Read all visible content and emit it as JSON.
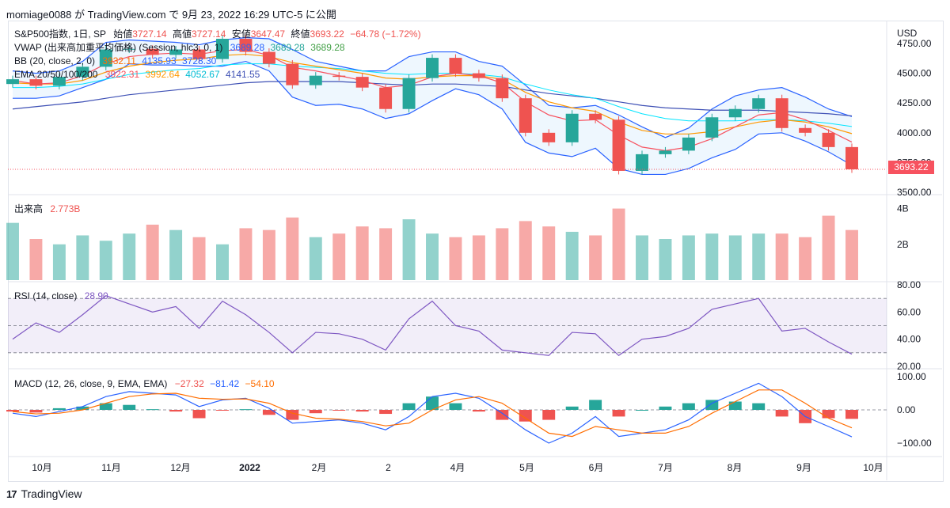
{
  "header": {
    "title": "momiage0088 が TradingView.com で 9月 23, 2022 16:29 UTC-5 に公開"
  },
  "legend": {
    "symbol": "S&P500指数, 1日, SP",
    "open_label": "始値",
    "open": "3727.14",
    "high_label": "高値",
    "high": "3727.14",
    "low_label": "安値",
    "low": "3647.47",
    "close_label": "終値",
    "close": "3693.22",
    "change": "−64.78 (−1.72%)",
    "vwap_label": "VWAP (出来高加重平均価格) (Session, hlc3, 0, 1)",
    "vwap_values": [
      "3689.28",
      "3689.28",
      "3689.28"
    ],
    "bb_label": "BB (20, close, 2, 0)",
    "bb_values": [
      "3932.11",
      "4135.93",
      "3728.30"
    ],
    "ema_label": "EMA 20/50/100/200",
    "ema_values": [
      "3922.31",
      "3992.64",
      "4052.67",
      "4141.55"
    ],
    "volume_label": "出来高",
    "volume_value": "2.773B",
    "rsi_label": "RSI (14, close)",
    "rsi_value": "28.90",
    "macd_label": "MACD (12, 26, close, 9, EMA, EMA)",
    "macd_values": [
      "−27.32",
      "−81.42",
      "−54.10"
    ]
  },
  "price_axis": {
    "currency": "USD",
    "ticks": [
      "4750.00",
      "4500.00",
      "4250.00",
      "4000.00",
      "3750.00",
      "3500.00"
    ],
    "last_price": "3693.22"
  },
  "volume_axis": {
    "ticks": [
      "4B",
      "2B"
    ]
  },
  "rsi_axis": {
    "ticks": [
      "80.00",
      "60.00",
      "40.00",
      "20.00"
    ]
  },
  "macd_axis": {
    "ticks": [
      "100.00",
      "0.00",
      "−100.00"
    ]
  },
  "time_axis": {
    "labels": [
      "10月",
      "11月",
      "12月",
      "2022",
      "2月",
      "2",
      "4月",
      "5月",
      "6月",
      "7月",
      "8月",
      "9月",
      "10月"
    ]
  },
  "footer": {
    "brand": "TradingView",
    "logo_glyph": "17"
  },
  "colors": {
    "up": "#26a69a",
    "down": "#ef5350",
    "bb": "#2962ff",
    "ema20": "#f7525f",
    "ema50": "#ff9800",
    "ema100": "#00e5ff",
    "ema200": "#3f51b5",
    "rsi": "#7e57c2",
    "macd": "#2962ff",
    "signal": "#ff6d00"
  },
  "chart_data": {
    "type": "line",
    "title": "S&P500指数, 1日, SP",
    "price_range": [
      3500,
      4850
    ],
    "x": [
      "2021-09-28",
      "2021-10-08",
      "2021-10-18",
      "2021-10-28",
      "2021-11-08",
      "2021-11-18",
      "2021-11-29",
      "2021-12-08",
      "2021-12-17",
      "2021-12-29",
      "2022-01-07",
      "2022-01-18",
      "2022-01-27",
      "2022-02-07",
      "2022-02-16",
      "2022-02-28",
      "2022-03-09",
      "2022-03-18",
      "2022-03-29",
      "2022-04-07",
      "2022-04-19",
      "2022-04-28",
      "2022-05-09",
      "2022-05-18",
      "2022-05-27",
      "2022-06-08",
      "2022-06-17",
      "2022-06-29",
      "2022-07-11",
      "2022-07-20",
      "2022-07-29",
      "2022-08-09",
      "2022-08-18",
      "2022-08-29",
      "2022-09-08",
      "2022-09-16",
      "2022-09-23"
    ],
    "close": [
      4450,
      4395,
      4470,
      4555,
      4700,
      4705,
      4655,
      4700,
      4620,
      4790,
      4680,
      4580,
      4400,
      4480,
      4470,
      4380,
      4200,
      4460,
      4630,
      4500,
      4460,
      4290,
      4000,
      3920,
      4160,
      4110,
      3680,
      3820,
      3850,
      3960,
      4130,
      4200,
      4290,
      4040,
      4000,
      3880,
      3693
    ],
    "series": [
      {
        "name": "BB upper",
        "values": [
          4520,
          4500,
          4520,
          4600,
          4760,
          4780,
          4770,
          4760,
          4740,
          4780,
          4800,
          4790,
          4700,
          4600,
          4560,
          4520,
          4520,
          4640,
          4680,
          4680,
          4600,
          4560,
          4400,
          4230,
          4210,
          4230,
          4150,
          4050,
          3960,
          4040,
          4200,
          4310,
          4360,
          4380,
          4300,
          4200,
          4136
        ]
      },
      {
        "name": "BB lower",
        "values": [
          4290,
          4290,
          4310,
          4380,
          4450,
          4580,
          4570,
          4570,
          4560,
          4560,
          4600,
          4520,
          4300,
          4230,
          4240,
          4200,
          4120,
          4160,
          4270,
          4370,
          4320,
          4200,
          3920,
          3830,
          3800,
          3870,
          3700,
          3650,
          3650,
          3700,
          3790,
          3860,
          3990,
          4000,
          3930,
          3840,
          3728
        ]
      },
      {
        "name": "EMA 20",
        "values": [
          4440,
          4410,
          4420,
          4480,
          4580,
          4640,
          4660,
          4670,
          4660,
          4690,
          4700,
          4650,
          4550,
          4520,
          4480,
          4440,
          4380,
          4400,
          4470,
          4500,
          4480,
          4420,
          4260,
          4150,
          4100,
          4110,
          3980,
          3880,
          3850,
          3880,
          3950,
          4050,
          4150,
          4170,
          4110,
          4020,
          3922
        ]
      },
      {
        "name": "EMA 50",
        "values": [
          4420,
          4410,
          4410,
          4440,
          4510,
          4560,
          4590,
          4610,
          4620,
          4650,
          4660,
          4640,
          4590,
          4560,
          4530,
          4500,
          4460,
          4450,
          4470,
          4480,
          4480,
          4450,
          4340,
          4260,
          4210,
          4180,
          4090,
          4020,
          3990,
          3990,
          4010,
          4050,
          4090,
          4110,
          4090,
          4050,
          3993
        ]
      },
      {
        "name": "EMA 100",
        "values": [
          4380,
          4380,
          4390,
          4410,
          4450,
          4490,
          4510,
          4530,
          4540,
          4570,
          4580,
          4580,
          4560,
          4550,
          4540,
          4520,
          4500,
          4490,
          4500,
          4500,
          4490,
          4470,
          4410,
          4360,
          4320,
          4290,
          4220,
          4160,
          4120,
          4100,
          4100,
          4100,
          4110,
          4110,
          4100,
          4080,
          4053
        ]
      },
      {
        "name": "EMA 200",
        "values": [
          4200,
          4220,
          4240,
          4260,
          4290,
          4320,
          4340,
          4360,
          4380,
          4400,
          4420,
          4430,
          4430,
          4430,
          4430,
          4420,
          4410,
          4400,
          4410,
          4410,
          4400,
          4390,
          4360,
          4330,
          4310,
          4290,
          4260,
          4230,
          4210,
          4200,
          4190,
          4190,
          4190,
          4180,
          4170,
          4160,
          4142
        ]
      },
      {
        "name": "RSI",
        "values": [
          40,
          52,
          45,
          58,
          72,
          66,
          60,
          64,
          48,
          68,
          58,
          45,
          30,
          45,
          44,
          40,
          32,
          55,
          68,
          50,
          46,
          32,
          30,
          28,
          45,
          44,
          28,
          40,
          42,
          48,
          62,
          66,
          70,
          46,
          48,
          38,
          29
        ]
      },
      {
        "name": "MACD",
        "values": [
          -10,
          -20,
          -5,
          10,
          40,
          55,
          50,
          45,
          10,
          30,
          35,
          5,
          -40,
          -35,
          -30,
          -40,
          -60,
          -20,
          40,
          50,
          35,
          -10,
          -60,
          -100,
          -70,
          -20,
          -80,
          -70,
          -60,
          -30,
          20,
          50,
          80,
          40,
          -20,
          -50,
          -81
        ]
      },
      {
        "name": "Signal",
        "values": [
          -5,
          -12,
          -10,
          0,
          20,
          40,
          48,
          50,
          35,
          32,
          33,
          20,
          -10,
          -25,
          -28,
          -35,
          -48,
          -40,
          0,
          30,
          40,
          20,
          -25,
          -70,
          -80,
          -50,
          -60,
          -70,
          -70,
          -50,
          -10,
          25,
          60,
          60,
          20,
          -25,
          -54
        ]
      },
      {
        "name": "Volume (B)",
        "values": [
          3.2,
          2.3,
          2.0,
          2.5,
          2.2,
          2.6,
          3.1,
          2.8,
          2.4,
          2.0,
          2.9,
          2.8,
          3.5,
          2.4,
          2.6,
          3.0,
          2.9,
          3.4,
          2.6,
          2.4,
          2.5,
          2.9,
          3.3,
          3.0,
          2.7,
          2.5,
          4.0,
          2.5,
          2.3,
          2.5,
          2.6,
          2.5,
          2.6,
          2.6,
          2.4,
          3.6,
          2.8
        ]
      }
    ]
  }
}
